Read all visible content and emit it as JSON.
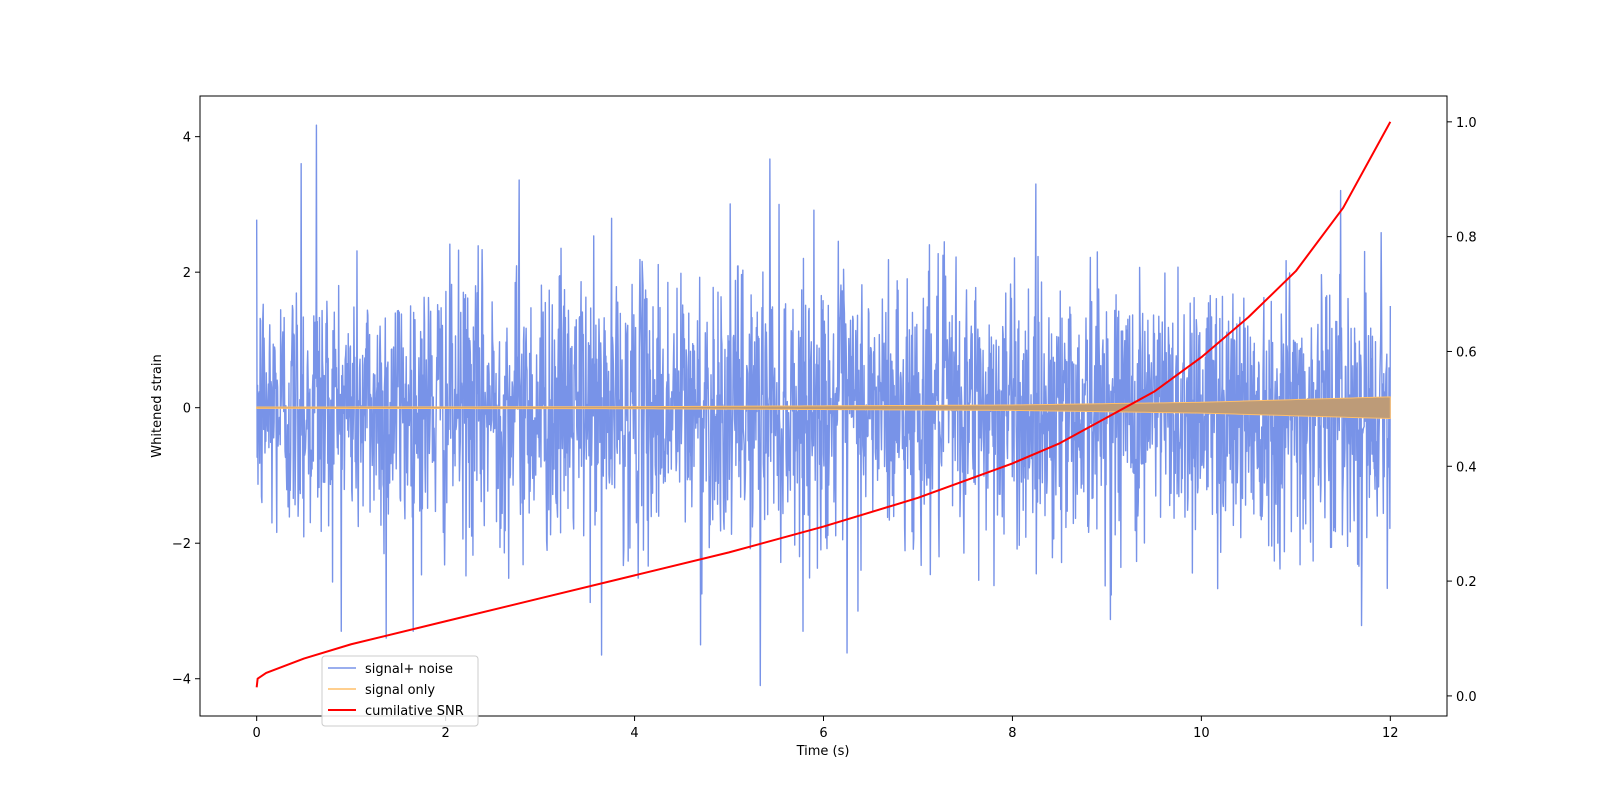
{
  "chart_data": {
    "type": "line",
    "xlabel": "Time (s)",
    "ylabel": "Whitened strain",
    "xlim": [
      -0.6,
      12.6
    ],
    "ylim": [
      -4.55,
      4.6
    ],
    "ylim_right": [
      -0.035,
      1.045
    ],
    "xticks": [
      0,
      2,
      4,
      6,
      8,
      10,
      12
    ],
    "yticks": [
      -4,
      -2,
      0,
      2,
      4
    ],
    "yticks_right": [
      0.0,
      0.2,
      0.4,
      0.6,
      0.8,
      1.0
    ],
    "legend_position": "lower-left",
    "series": [
      {
        "name": "signal+ noise",
        "color": "#7893e8",
        "axis": "left",
        "noise_std": 1.0,
        "x_range": [
          0,
          12
        ],
        "notable_peaks": [
          {
            "x": 0.63,
            "y": 4.17
          },
          {
            "x": 0.47,
            "y": 3.6
          },
          {
            "x": 5.43,
            "y": 3.67
          },
          {
            "x": 2.78,
            "y": 3.36
          },
          {
            "x": 5.33,
            "y": -4.1
          },
          {
            "x": 3.65,
            "y": -3.65
          },
          {
            "x": 6.25,
            "y": -3.62
          },
          {
            "x": 4.7,
            "y": -3.5
          },
          {
            "x": 1.37,
            "y": -3.4
          }
        ]
      },
      {
        "name": "signal only",
        "color": "#ffbf69",
        "axis": "left",
        "amplitude": [
          [
            0,
            0.01
          ],
          [
            4,
            0.015
          ],
          [
            8,
            0.04
          ],
          [
            10,
            0.08
          ],
          [
            12,
            0.16
          ]
        ]
      },
      {
        "name": "cumilative SNR",
        "color": "#ff0000",
        "axis": "right",
        "x": [
          0,
          0.01,
          0.1,
          0.5,
          1,
          2,
          3,
          4,
          5,
          6,
          7,
          8,
          8.5,
          9,
          9.5,
          10,
          10.5,
          11,
          11.5,
          12
        ],
        "y": [
          0.015,
          0.03,
          0.04,
          0.065,
          0.09,
          0.13,
          0.17,
          0.21,
          0.25,
          0.295,
          0.345,
          0.405,
          0.44,
          0.485,
          0.53,
          0.59,
          0.66,
          0.74,
          0.85,
          1.0
        ]
      }
    ]
  }
}
